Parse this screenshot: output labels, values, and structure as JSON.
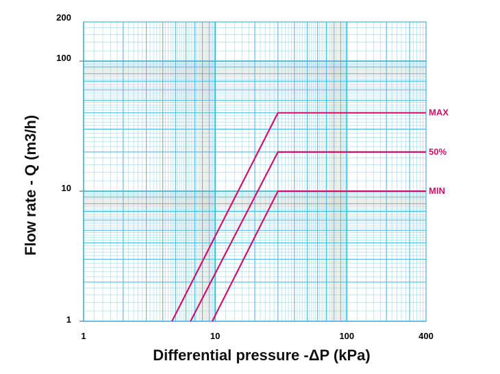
{
  "chart_data": {
    "type": "line",
    "xlabel": "Differential pressure -ΔP (kPa)",
    "ylabel": "Flow rate - Q (m3/h)",
    "xscale": "log",
    "yscale": "log",
    "xlim": [
      1,
      400
    ],
    "ylim": [
      1,
      200
    ],
    "xticks": [
      1,
      10,
      100,
      400
    ],
    "xtick_labels": [
      "1",
      "10",
      "100",
      "400"
    ],
    "yticks": [
      1,
      10,
      100,
      200
    ],
    "ytick_labels": [
      "1",
      "10",
      "100",
      "200"
    ],
    "grid": true,
    "grid_color": "#3fb4d8",
    "series_color": "#d0106e",
    "series": [
      {
        "name": "MAX",
        "x": [
          4.7,
          30,
          400
        ],
        "y": [
          1,
          40,
          40
        ]
      },
      {
        "name": "50%",
        "x": [
          6.5,
          30,
          400
        ],
        "y": [
          1,
          20,
          20
        ]
      },
      {
        "name": "MIN",
        "x": [
          9.5,
          30,
          400
        ],
        "y": [
          1,
          10,
          10
        ]
      }
    ]
  }
}
